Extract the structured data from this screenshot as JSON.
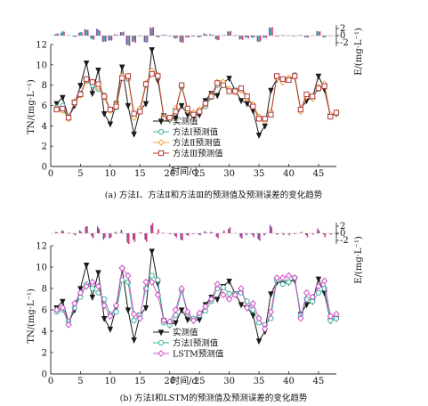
{
  "chart_data": [
    {
      "type": "line",
      "caption": "(a) 方法Ⅰ、方法Ⅱ和方法Ⅲ的预测值及预测误差的变化趋势",
      "xlabel": "时间/d",
      "ylabel": "TN/(mg·L⁻¹)",
      "xlim": [
        0,
        48
      ],
      "ylim": [
        0,
        12
      ],
      "xticks": [
        0,
        5,
        10,
        15,
        20,
        25,
        30,
        35,
        40,
        45
      ],
      "yticks": [
        0,
        2,
        4,
        6,
        8,
        10,
        12
      ],
      "x": [
        1,
        2,
        3,
        4,
        5,
        6,
        7,
        8,
        9,
        10,
        11,
        12,
        13,
        14,
        15,
        16,
        17,
        18,
        19,
        20,
        21,
        22,
        23,
        24,
        25,
        26,
        27,
        28,
        29,
        30,
        31,
        32,
        33,
        34,
        35,
        36,
        37,
        38,
        39,
        40,
        41,
        42,
        43,
        44,
        45,
        46,
        47,
        48
      ],
      "series": [
        {
          "name": "实测值",
          "color": "#1a1a1a",
          "marker": "triangle-down",
          "values": [
            6.2,
            6.8,
            4.8,
            6.0,
            8.0,
            10.2,
            7.2,
            9.5,
            5.2,
            4.2,
            6.2,
            9.8,
            6.0,
            3.2,
            5.5,
            6.2,
            11.5,
            8.5,
            5.0,
            4.6,
            4.8,
            6.0,
            5.1,
            5.0,
            5.1,
            6.5,
            7.2,
            7.0,
            8.2,
            8.7,
            7.5,
            6.5,
            6.2,
            5.5,
            3.1,
            4.0,
            7.5,
            8.6,
            8.5,
            8.6,
            8.8,
            5.6,
            6.5,
            6.8,
            8.9,
            7.6,
            5.0,
            5.2
          ]
        },
        {
          "name": "方法Ⅰ预测值",
          "color": "#3db2a0",
          "marker": "circle",
          "values": [
            5.8,
            6.0,
            4.9,
            6.2,
            7.2,
            8.4,
            8.0,
            7.6,
            7.0,
            5.6,
            5.8,
            8.8,
            8.6,
            5.0,
            5.5,
            8.0,
            9.2,
            8.8,
            4.8,
            4.6,
            5.5,
            7.8,
            5.6,
            5.2,
            5.5,
            5.9,
            6.8,
            8.0,
            8.1,
            7.5,
            7.5,
            7.6,
            6.8,
            6.0,
            4.8,
            4.6,
            5.2,
            8.8,
            8.4,
            8.6,
            9.0,
            5.5,
            7.0,
            6.8,
            7.6,
            8.0,
            5.0,
            5.2
          ]
        },
        {
          "name": "方法Ⅱ预测值",
          "color": "#f0a03c",
          "marker": "diamond",
          "values": [
            5.7,
            5.5,
            4.7,
            6.4,
            7.0,
            8.5,
            8.3,
            7.8,
            6.8,
            5.5,
            6.1,
            8.9,
            8.7,
            4.8,
            5.7,
            8.2,
            9.4,
            9.0,
            4.9,
            4.7,
            5.7,
            7.9,
            5.5,
            5.3,
            5.6,
            6.1,
            7.0,
            8.3,
            8.3,
            7.6,
            7.3,
            7.5,
            6.7,
            6.1,
            4.9,
            4.5,
            5.4,
            8.7,
            8.3,
            8.7,
            8.8,
            5.4,
            6.9,
            6.7,
            7.8,
            8.1,
            5.1,
            5.3
          ]
        },
        {
          "name": "方法Ⅲ预测值",
          "color": "#b23a3a",
          "marker": "square",
          "values": [
            5.6,
            5.7,
            4.8,
            6.3,
            7.1,
            8.6,
            8.3,
            8.1,
            6.9,
            5.6,
            5.9,
            8.7,
            8.9,
            5.2,
            5.4,
            8.1,
            9.1,
            8.9,
            4.7,
            4.8,
            5.4,
            8.0,
            5.7,
            5.1,
            5.4,
            6.2,
            6.9,
            8.2,
            8.0,
            7.4,
            7.4,
            7.7,
            6.9,
            5.9,
            4.7,
            4.7,
            5.1,
            8.9,
            8.6,
            8.5,
            8.9,
            5.6,
            7.1,
            6.9,
            7.7,
            7.9,
            4.9,
            5.3
          ]
        }
      ],
      "error_axis": {
        "label": "E/(mg·L⁻¹)",
        "ylim": [
          -3,
          3
        ],
        "ticks": [
          -2,
          0,
          2
        ]
      },
      "error_series": [
        {
          "name": "方法Ⅰ",
          "color": "#7a4fa0",
          "values": [
            0.4,
            0.8,
            -0.1,
            -0.2,
            0.8,
            1.8,
            -0.8,
            1.9,
            -1.8,
            -1.4,
            0.4,
            1.0,
            -2.6,
            -1.8,
            0.0,
            -1.8,
            2.3,
            -0.3,
            0.2,
            0.0,
            -0.7,
            -1.8,
            -0.5,
            -0.2,
            -0.4,
            0.6,
            0.4,
            -1.0,
            0.1,
            1.2,
            0.0,
            -1.1,
            -0.6,
            -0.5,
            -1.7,
            -0.6,
            2.3,
            -0.2,
            0.1,
            0.0,
            -0.2,
            0.1,
            -0.5,
            0.0,
            1.3,
            -0.4,
            0.0,
            0.0
          ]
        },
        {
          "name": "方法Ⅱ",
          "color": "#3db2a0",
          "values": [
            0.5,
            1.3,
            0.1,
            -0.4,
            1.0,
            1.7,
            -1.1,
            1.7,
            -1.6,
            -1.3,
            0.1,
            0.9,
            -2.7,
            -1.6,
            -0.2,
            -2.0,
            2.1,
            -0.5,
            0.1,
            -0.1,
            -0.9,
            -1.9,
            -0.4,
            -0.3,
            -0.5,
            0.4,
            0.2,
            -1.3,
            -0.1,
            1.1,
            0.2,
            -1.0,
            -0.5,
            -0.6,
            -1.8,
            -0.5,
            2.1,
            -0.1,
            0.2,
            -0.1,
            0.0,
            0.2,
            -0.4,
            0.1,
            1.1,
            -0.5,
            -0.1,
            -0.1
          ]
        },
        {
          "name": "方法Ⅲ",
          "color": "#d83a78",
          "values": [
            0.6,
            1.1,
            0.0,
            -0.3,
            0.9,
            1.6,
            -1.1,
            1.4,
            -1.7,
            -1.4,
            0.3,
            1.1,
            -2.9,
            -2.0,
            0.1,
            -1.9,
            2.4,
            -0.4,
            0.3,
            -0.2,
            -0.6,
            -2.0,
            -0.6,
            -0.1,
            -0.3,
            0.3,
            0.3,
            -1.2,
            0.2,
            1.3,
            0.1,
            -1.2,
            -0.7,
            -0.4,
            -1.6,
            -0.7,
            2.4,
            -0.3,
            -0.1,
            0.1,
            -0.1,
            0.0,
            -0.6,
            -0.1,
            1.2,
            -0.3,
            0.1,
            -0.1
          ]
        }
      ]
    },
    {
      "type": "line",
      "caption": "(b) 方法Ⅰ和LSTM的预测值及预测误差的变化趋势",
      "xlabel": "时间/d",
      "ylabel": "TN/(mg·L⁻¹)",
      "xlim": [
        0,
        48
      ],
      "ylim": [
        0,
        12
      ],
      "xticks": [
        0,
        5,
        10,
        15,
        20,
        25,
        30,
        35,
        40,
        45
      ],
      "yticks": [
        0,
        2,
        4,
        6,
        8,
        10,
        12
      ],
      "x": [
        1,
        2,
        3,
        4,
        5,
        6,
        7,
        8,
        9,
        10,
        11,
        12,
        13,
        14,
        15,
        16,
        17,
        18,
        19,
        20,
        21,
        22,
        23,
        24,
        25,
        26,
        27,
        28,
        29,
        30,
        31,
        32,
        33,
        34,
        35,
        36,
        37,
        38,
        39,
        40,
        41,
        42,
        43,
        44,
        45,
        46,
        47,
        48
      ],
      "series": [
        {
          "name": "实测值",
          "color": "#1a1a1a",
          "marker": "triangle-down",
          "values": [
            6.2,
            6.8,
            4.8,
            6.0,
            8.0,
            10.2,
            7.2,
            9.5,
            5.2,
            4.2,
            6.2,
            9.8,
            6.0,
            3.2,
            5.5,
            6.2,
            11.5,
            8.5,
            5.0,
            4.6,
            4.8,
            6.0,
            5.1,
            5.0,
            5.1,
            6.5,
            7.2,
            7.0,
            8.2,
            8.7,
            7.5,
            6.5,
            6.2,
            5.5,
            3.1,
            4.0,
            7.5,
            8.6,
            8.5,
            8.6,
            8.8,
            5.6,
            6.5,
            6.8,
            8.9,
            7.6,
            5.0,
            5.2
          ]
        },
        {
          "name": "方法Ⅰ预测值",
          "color": "#3db2a0",
          "marker": "circle",
          "values": [
            5.8,
            6.0,
            4.9,
            6.2,
            7.2,
            8.4,
            8.0,
            7.6,
            7.0,
            5.6,
            5.8,
            8.8,
            8.6,
            5.0,
            5.5,
            8.0,
            9.2,
            8.8,
            4.8,
            4.6,
            5.5,
            7.8,
            5.6,
            5.2,
            5.5,
            5.9,
            6.8,
            8.0,
            8.1,
            7.5,
            7.5,
            7.6,
            6.8,
            6.0,
            4.8,
            4.6,
            5.2,
            8.8,
            8.4,
            8.6,
            9.0,
            5.5,
            7.0,
            6.8,
            7.6,
            8.0,
            5.0,
            5.2
          ]
        },
        {
          "name": "LSTM预测值",
          "color": "#d050c8",
          "marker": "diamond",
          "values": [
            6.0,
            6.2,
            4.6,
            6.6,
            7.6,
            8.2,
            8.6,
            8.2,
            6.4,
            5.4,
            6.4,
            9.9,
            9.2,
            5.6,
            5.2,
            8.6,
            8.6,
            7.4,
            5.0,
            4.9,
            6.0,
            8.0,
            5.8,
            5.0,
            5.7,
            6.3,
            7.0,
            8.4,
            7.4,
            7.0,
            7.4,
            8.0,
            6.2,
            6.6,
            5.2,
            4.2,
            5.8,
            9.0,
            9.0,
            9.2,
            9.0,
            5.2,
            7.6,
            7.2,
            8.2,
            8.7,
            5.4,
            5.6
          ]
        }
      ],
      "error_axis": {
        "label": "E/(mg·L⁻¹)",
        "ylim": [
          -3,
          3
        ],
        "ticks": [
          -2,
          0,
          2
        ]
      },
      "error_series": [
        {
          "name": "方法Ⅰ",
          "color": "#7a4fa0",
          "values": [
            0.4,
            0.8,
            -0.1,
            -0.2,
            0.8,
            1.8,
            -0.8,
            1.9,
            -1.8,
            -1.4,
            0.4,
            1.0,
            -2.6,
            -1.8,
            0.0,
            -1.8,
            2.3,
            -0.3,
            0.2,
            0.0,
            -0.7,
            -1.8,
            -0.5,
            -0.2,
            -0.4,
            0.6,
            0.4,
            -1.0,
            0.1,
            1.2,
            0.0,
            -1.1,
            -0.6,
            -0.5,
            -1.7,
            -0.6,
            2.3,
            -0.2,
            0.1,
            0.0,
            -0.2,
            0.1,
            -0.5,
            0.0,
            1.3,
            -0.4,
            0.0,
            0.0
          ]
        },
        {
          "name": "LSTM",
          "color": "#d83a78",
          "values": [
            0.2,
            0.6,
            0.2,
            -0.6,
            0.4,
            2.0,
            -1.4,
            1.3,
            -1.2,
            -1.2,
            -0.2,
            -0.1,
            -3.0,
            -2.4,
            0.3,
            -2.4,
            2.9,
            1.1,
            0.0,
            -0.3,
            -1.2,
            -2.0,
            -0.7,
            0.0,
            -0.6,
            0.2,
            0.2,
            -1.4,
            0.8,
            1.7,
            0.1,
            -1.5,
            0.0,
            -1.1,
            -2.1,
            -0.2,
            1.7,
            -0.4,
            -0.5,
            -0.6,
            -0.2,
            0.4,
            -1.1,
            -0.4,
            0.7,
            -1.1,
            -0.4,
            -0.4
          ]
        }
      ]
    }
  ]
}
